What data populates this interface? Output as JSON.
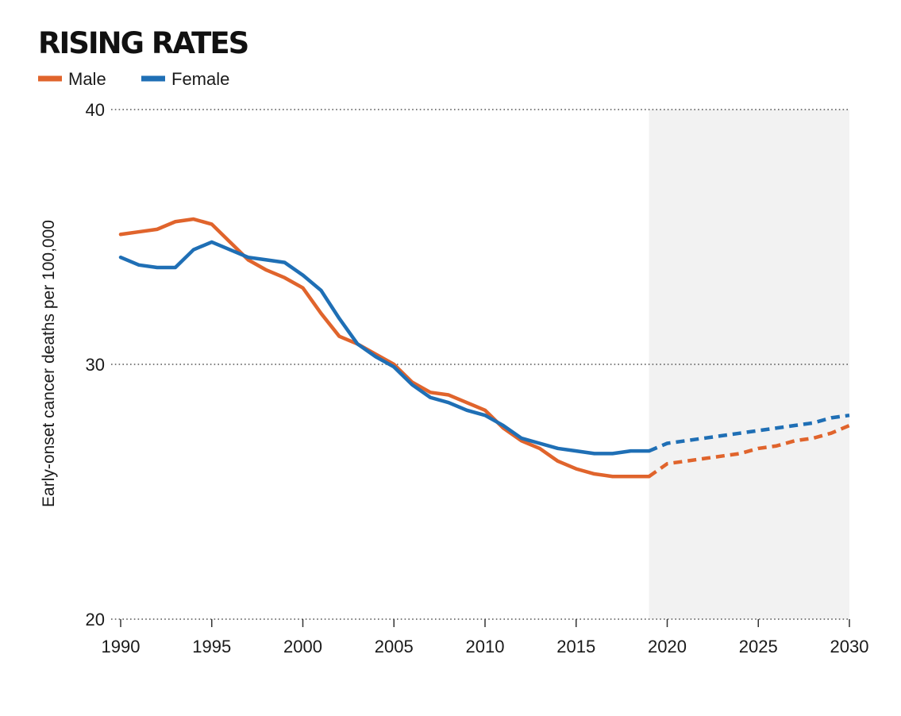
{
  "chart_data": {
    "type": "line",
    "title": "RISING RATES",
    "xlabel": "",
    "ylabel": "Early-onset cancer deaths per 100,000",
    "xlim": [
      1990,
      2030
    ],
    "ylim": [
      20,
      40
    ],
    "x_ticks": [
      1990,
      1995,
      2000,
      2005,
      2010,
      2015,
      2020,
      2025,
      2030
    ],
    "y_ticks": [
      20,
      30,
      40
    ],
    "grid": "horizontal dotted",
    "legend_position": "top-left",
    "projection_start": 2019,
    "projection_shaded": [
      2019,
      2030
    ],
    "colors": {
      "male": "#e0642c",
      "female": "#1f6fb5",
      "projection_band": "#f2f2f2",
      "grid": "#555555"
    },
    "series": [
      {
        "name": "Male",
        "observed": {
          "x": [
            1990,
            1991,
            1992,
            1993,
            1994,
            1995,
            1996,
            1997,
            1998,
            1999,
            2000,
            2001,
            2002,
            2003,
            2004,
            2005,
            2006,
            2007,
            2008,
            2009,
            2010,
            2011,
            2012,
            2013,
            2014,
            2015,
            2016,
            2017,
            2018,
            2019
          ],
          "y": [
            35.1,
            35.2,
            35.3,
            35.6,
            35.7,
            35.5,
            34.8,
            34.1,
            33.7,
            33.4,
            33.0,
            32.0,
            31.1,
            30.8,
            30.4,
            30.0,
            29.3,
            28.9,
            28.8,
            28.5,
            28.2,
            27.5,
            27.0,
            26.7,
            26.2,
            25.9,
            25.7,
            25.6,
            25.6,
            25.6
          ]
        },
        "projected": {
          "x": [
            2019,
            2020,
            2021,
            2022,
            2023,
            2024,
            2025,
            2026,
            2027,
            2028,
            2029,
            2030
          ],
          "y": [
            25.6,
            26.1,
            26.2,
            26.3,
            26.4,
            26.5,
            26.7,
            26.8,
            27.0,
            27.1,
            27.3,
            27.6
          ]
        }
      },
      {
        "name": "Female",
        "observed": {
          "x": [
            1990,
            1991,
            1992,
            1993,
            1994,
            1995,
            1996,
            1997,
            1998,
            1999,
            2000,
            2001,
            2002,
            2003,
            2004,
            2005,
            2006,
            2007,
            2008,
            2009,
            2010,
            2011,
            2012,
            2013,
            2014,
            2015,
            2016,
            2017,
            2018,
            2019
          ],
          "y": [
            34.2,
            33.9,
            33.8,
            33.8,
            34.5,
            34.8,
            34.5,
            34.2,
            34.1,
            34.0,
            33.5,
            32.9,
            31.8,
            30.8,
            30.3,
            29.9,
            29.2,
            28.7,
            28.5,
            28.2,
            28.0,
            27.6,
            27.1,
            26.9,
            26.7,
            26.6,
            26.5,
            26.5,
            26.6,
            26.6
          ]
        },
        "projected": {
          "x": [
            2019,
            2020,
            2021,
            2022,
            2023,
            2024,
            2025,
            2026,
            2027,
            2028,
            2029,
            2030
          ],
          "y": [
            26.6,
            26.9,
            27.0,
            27.1,
            27.2,
            27.3,
            27.4,
            27.5,
            27.6,
            27.7,
            27.9,
            28.0
          ]
        }
      }
    ]
  }
}
